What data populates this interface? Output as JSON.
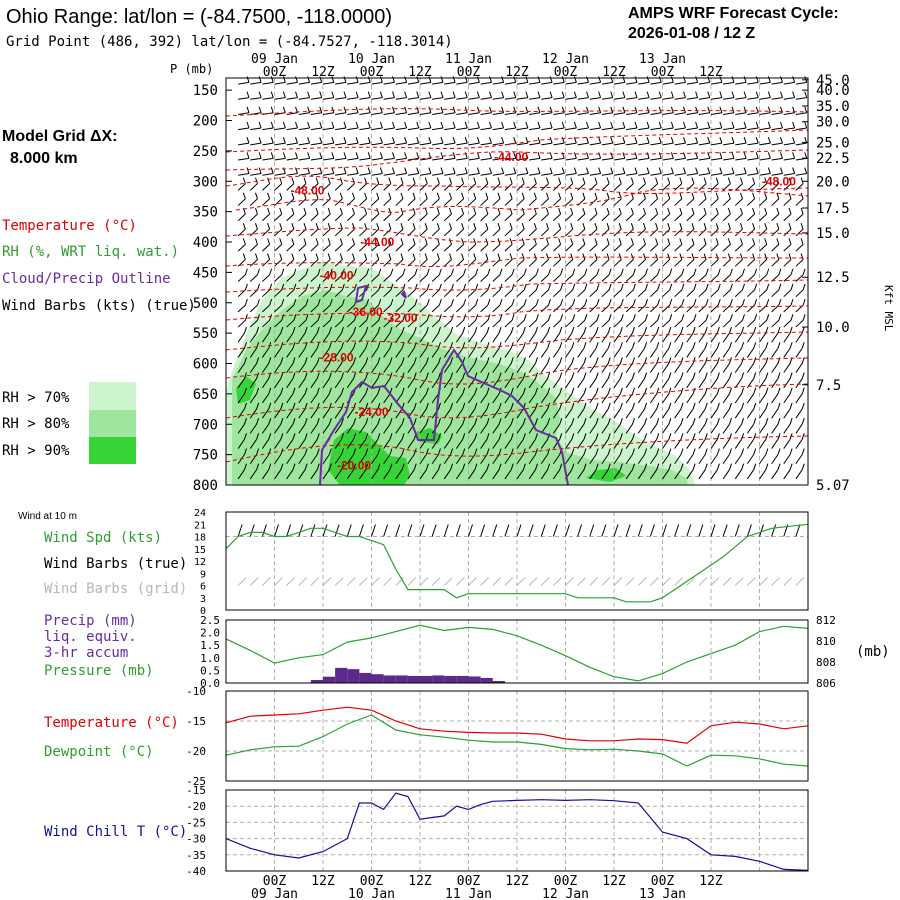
{
  "header": {
    "title": "Ohio Range:  lat/lon = (-84.7500, -118.0000)",
    "grid_point": "Grid Point (486, 392) lat/lon = (-84.7527, -118.3014)",
    "cycle_line1": "AMPS WRF Forecast Cycle:",
    "cycle_line2": "2026-01-08 / 12  Z"
  },
  "left_legend": {
    "model_grid_label": "Model Grid ΔX:",
    "model_grid_value": "8.000 km",
    "temperature": "Temperature (°C)",
    "rh": "RH (%, WRT liq. wat.)",
    "cloud": "Cloud/Precip Outline",
    "wind_barbs": "Wind Barbs (kts) (true)",
    "rh70": "RH > 70%",
    "rh80": "RH > 80%",
    "rh90": "RH > 90%"
  },
  "colors": {
    "temperature": "#e00000",
    "rh_label": "#2ea02e",
    "cloud": "#6a2aa0",
    "rh70": "#cdf5cd",
    "rh80": "#9ee69e",
    "rh90": "#36d436",
    "precip": "#5c2a8c",
    "wind_chill": "#1010a0",
    "grid": "#b0b0b0"
  },
  "chart_data": [
    {
      "id": "cross_section",
      "type": "heatmap",
      "title": "Vertical time section",
      "y_label": "P (mb)",
      "right_label": "Kft MSL",
      "y_ticks": [
        "150",
        "200",
        "250",
        "300",
        "350",
        "400",
        "450",
        "500",
        "550",
        "600",
        "650",
        "700",
        "750",
        "800"
      ],
      "y_range_mb": [
        130,
        800
      ],
      "right_ticks": [
        {
          "label": "45.0",
          "p": 133
        },
        {
          "label": "40.0",
          "p": 150
        },
        {
          "label": "35.0",
          "p": 176
        },
        {
          "label": "30.0",
          "p": 202
        },
        {
          "label": "25.0",
          "p": 236
        },
        {
          "label": "22.5",
          "p": 262
        },
        {
          "label": "20.0",
          "p": 300
        },
        {
          "label": "17.5",
          "p": 344
        },
        {
          "label": "15.0",
          "p": 385
        },
        {
          "label": "12.5",
          "p": 458
        },
        {
          "label": "10.0",
          "p": 540
        },
        {
          "label": "7.5",
          "p": 635
        },
        {
          "label": "5.07",
          "p": 800
        }
      ],
      "top_time_labels": [
        "00Z",
        "12Z",
        "00Z",
        "12Z",
        "00Z",
        "12Z",
        "00Z",
        "12Z",
        "00Z",
        "12Z"
      ],
      "top_date_labels": [
        "09 Jan",
        "10 Jan",
        "11 Jan",
        "12 Jan",
        "13 Jan"
      ],
      "temperature_contour_labels": [
        {
          "text": "-44.00",
          "t": 49,
          "p": 260
        },
        {
          "text": "-48.00",
          "t": 95,
          "p": 300
        },
        {
          "text": "-48.00",
          "t": 14,
          "p": 315
        },
        {
          "text": "-44.00",
          "t": 26,
          "p": 400
        },
        {
          "text": "-40.00",
          "t": 19,
          "p": 455
        },
        {
          "text": "-36.00",
          "t": 24,
          "p": 515
        },
        {
          "text": "-32.00",
          "t": 30,
          "p": 525
        },
        {
          "text": "-28.00",
          "t": 19,
          "p": 590
        },
        {
          "text": "-24.00",
          "t": 25,
          "p": 680
        },
        {
          "text": "-20.00",
          "t": 22,
          "p": 768
        }
      ]
    },
    {
      "id": "wind10m",
      "type": "line",
      "title": "Wind at 10 m",
      "labels": [
        "Wind Spd (kts)",
        "Wind Barbs (true)",
        "Wind Barbs (grid)"
      ],
      "y_ticks": [
        "24",
        "21",
        "18",
        "15",
        "12",
        "9",
        "6",
        "3",
        "0"
      ],
      "ylim": [
        0,
        24
      ],
      "x_hours": [
        0,
        3,
        6,
        9,
        12,
        15,
        18,
        21,
        24,
        27,
        30,
        33,
        36,
        39,
        42,
        45,
        48,
        51,
        54,
        57,
        60,
        63,
        66,
        69,
        72,
        75,
        78,
        81,
        84,
        87,
        90,
        93,
        96,
        99,
        102,
        105,
        108,
        111,
        114,
        117
      ],
      "wind_speed_kts": [
        15,
        18,
        19,
        19,
        18,
        18,
        19,
        20,
        20,
        19,
        18,
        18,
        17,
        16,
        10,
        5,
        5,
        5,
        5,
        3,
        4,
        4,
        4,
        4,
        4,
        4,
        4,
        4,
        4,
        3,
        3,
        3,
        3,
        2,
        2,
        2,
        3,
        5,
        7,
        9
      ],
      "wind_speed_extra_note": "continues: 117h 9, 123h 13, 129h 18, 135h 20, 144h 21"
    },
    {
      "id": "precip_pressure",
      "type": "bar",
      "labels": [
        "Precip (mm)",
        "liq. equiv.",
        "3-hr accum",
        "Pressure (mb)"
      ],
      "left_ticks": [
        "2.5",
        "2.0",
        "1.5",
        "1.0",
        "0.5",
        "0.0"
      ],
      "right_ticks": [
        "812",
        "810",
        "808",
        "806"
      ],
      "right_unit": "(mb)",
      "precip_ylim": [
        0,
        2.5
      ],
      "pressure_ylim": [
        806,
        812
      ],
      "precip_hours": [
        21,
        24,
        27,
        30,
        33,
        36,
        39,
        42,
        45,
        48,
        51,
        54,
        57,
        60,
        63,
        66
      ],
      "precip_mm": [
        0.12,
        0.25,
        0.6,
        0.55,
        0.4,
        0.35,
        0.3,
        0.3,
        0.28,
        0.28,
        0.3,
        0.28,
        0.28,
        0.26,
        0.2,
        0.08
      ],
      "pressure_hours": [
        0,
        6,
        12,
        18,
        24,
        30,
        36,
        42,
        48,
        54,
        60,
        66,
        72,
        78,
        84,
        90,
        96,
        102,
        108,
        114,
        120,
        126,
        132,
        138,
        144
      ],
      "pressure_mb": [
        810.2,
        809.1,
        807.9,
        808.4,
        808.7,
        809.9,
        810.3,
        810.9,
        811.5,
        811.0,
        811.3,
        811.1,
        810.5,
        809.6,
        808.6,
        807.5,
        806.6,
        806.2,
        806.9,
        808.0,
        808.8,
        809.6,
        810.9,
        811.4,
        811.2
      ]
    },
    {
      "id": "temp_dew",
      "type": "line",
      "labels": [
        "Temperature (°C)",
        "Dewpoint (°C)"
      ],
      "y_ticks": [
        "-10",
        "-15",
        "-20",
        "-25"
      ],
      "ylim": [
        -25,
        -10
      ],
      "hours": [
        0,
        6,
        12,
        18,
        24,
        30,
        36,
        42,
        48,
        54,
        60,
        66,
        72,
        78,
        84,
        90,
        96,
        102,
        108,
        114,
        120,
        126,
        132,
        138,
        144
      ],
      "temperature": [
        -15.3,
        -14.2,
        -14.0,
        -13.8,
        -13.2,
        -12.7,
        -13.2,
        -15.0,
        -16.3,
        -16.7,
        -16.9,
        -17.0,
        -17.0,
        -17.2,
        -18.0,
        -18.3,
        -18.3,
        -18.0,
        -18.1,
        -18.7,
        -15.8,
        -15.2,
        -15.5,
        -16.3,
        -15.8
      ],
      "dewpoint": [
        -20.7,
        -19.8,
        -19.3,
        -19.2,
        -17.6,
        -15.5,
        -14.0,
        -16.5,
        -17.3,
        -17.7,
        -18.2,
        -18.5,
        -18.5,
        -18.9,
        -19.6,
        -19.8,
        -19.7,
        -20.0,
        -20.5,
        -22.5,
        -20.7,
        -20.8,
        -21.3,
        -22.2,
        -22.5
      ]
    },
    {
      "id": "wind_chill",
      "type": "line",
      "labels": [
        "Wind Chill T (°C)"
      ],
      "y_ticks": [
        "-15",
        "-20",
        "-25",
        "-30",
        "-35",
        "-40"
      ],
      "ylim": [
        -40,
        -15
      ],
      "hours": [
        0,
        6,
        12,
        18,
        24,
        30,
        33,
        36,
        39,
        42,
        45,
        48,
        51,
        54,
        57,
        60,
        63,
        66,
        72,
        78,
        84,
        90,
        96,
        102,
        108,
        114,
        120,
        126,
        132,
        138,
        144
      ],
      "wind_chill": [
        -30,
        -33,
        -35,
        -36,
        -34,
        -30,
        -19,
        -19,
        -21,
        -16,
        -17,
        -24,
        -23.5,
        -23,
        -20,
        -21,
        -19.5,
        -18.5,
        -18.2,
        -18,
        -18.2,
        -18,
        -18.3,
        -19,
        -28,
        -30,
        -35,
        -35.5,
        -37,
        -39.5,
        -39.8
      ]
    }
  ],
  "bottom_axis": {
    "time_labels": [
      "00Z",
      "12Z",
      "00Z",
      "12Z",
      "00Z",
      "12Z",
      "00Z",
      "12Z",
      "00Z",
      "12Z"
    ],
    "date_labels": [
      "09 Jan",
      "10 Jan",
      "11 Jan",
      "12 Jan",
      "13 Jan"
    ]
  }
}
